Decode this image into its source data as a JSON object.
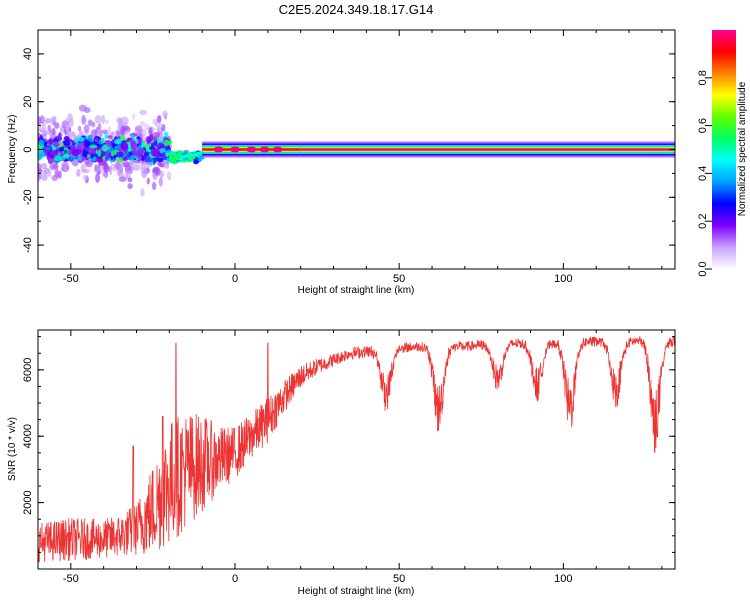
{
  "chart_data": [
    {
      "type": "heatmap",
      "title": "C2E5.2024.349.18.17.G14",
      "xlabel": "Height of straight line (km)",
      "ylabel": "Frequency (Hz)",
      "xlim": [
        -60,
        134
      ],
      "ylim": [
        -50,
        50
      ],
      "xticks": [
        "-50",
        "0",
        "50",
        "100"
      ],
      "yticks": [
        "40",
        "20",
        "0",
        "-20",
        "-40"
      ],
      "colorbar": {
        "label": "Normalized spectral amplitude",
        "range": [
          0,
          1
        ],
        "ticks": [
          "0.0",
          "0.2",
          "0.4",
          "0.6",
          "0.8"
        ],
        "colors": [
          "#ffffff",
          "#c8a0ff",
          "#8000ff",
          "#0000ff",
          "#00a0ff",
          "#00ffff",
          "#00ff60",
          "#60ff00",
          "#ffff00",
          "#ff8000",
          "#ff0000",
          "#ff0090"
        ]
      },
      "segments": [
        {
          "x": [
            -60,
            -20
          ],
          "y_center": 0,
          "y_spread": 8,
          "level": 0.3,
          "pattern": "scattered"
        },
        {
          "x": [
            -20,
            -10
          ],
          "y_center": -3,
          "y_spread": 3,
          "level": 0.45,
          "pattern": "transition"
        },
        {
          "x": [
            -10,
            20
          ],
          "y_center": 0,
          "y_spread": 1.5,
          "level": 0.95,
          "pattern": "blobs"
        },
        {
          "x": [
            20,
            134
          ],
          "y_center": 0,
          "y_spread": 1.5,
          "level": 1.0,
          "pattern": "steady"
        }
      ]
    },
    {
      "type": "line",
      "xlabel": "Height of straight line (km)",
      "ylabel": "SNR (10 * v/v)",
      "xlim": [
        -60,
        134
      ],
      "ylim": [
        0,
        7200
      ],
      "xticks": [
        "-50",
        "0",
        "50",
        "100"
      ],
      "yticks": [
        "6000",
        "4000",
        "2000"
      ],
      "line_color": "#ee3333",
      "envelope": {
        "x": [
          -60,
          -50,
          -40,
          -35,
          -30,
          -25,
          -20,
          -15,
          -10,
          -5,
          0,
          5,
          10,
          15,
          20,
          25,
          30,
          35,
          40,
          45,
          50,
          55,
          60,
          65,
          70,
          75,
          80,
          85,
          90,
          95,
          100,
          105,
          110,
          115,
          120,
          125,
          130,
          134
        ],
        "mean": [
          800,
          900,
          900,
          1000,
          1200,
          1800,
          2600,
          3000,
          3200,
          3300,
          3500,
          4000,
          4500,
          5200,
          5800,
          6100,
          6300,
          6500,
          6550,
          6600,
          6650,
          6700,
          6700,
          6700,
          6700,
          6750,
          6750,
          6800,
          6800,
          6800,
          6850,
          6850,
          6850,
          6850,
          6850,
          6900,
          6900,
          6850
        ],
        "noise": [
          600,
          650,
          600,
          650,
          800,
          1400,
          1900,
          1800,
          1500,
          1000,
          800,
          700,
          700,
          500,
          350,
          250,
          200,
          180,
          180,
          180,
          150,
          150,
          150,
          150,
          150,
          150,
          150,
          150,
          150,
          150,
          150,
          150,
          150,
          150,
          150,
          150,
          150,
          150
        ]
      },
      "dips": [
        {
          "x": 46,
          "min": 4700,
          "width": 3
        },
        {
          "x": 62,
          "min": 4000,
          "width": 3
        },
        {
          "x": 80,
          "min": 5300,
          "width": 3
        },
        {
          "x": 92,
          "min": 5000,
          "width": 3
        },
        {
          "x": 102,
          "min": 4000,
          "width": 3
        },
        {
          "x": 116,
          "min": 4800,
          "width": 3
        },
        {
          "x": 128,
          "min": 3400,
          "width": 3
        }
      ],
      "peaks": [
        {
          "x": -18,
          "value": 6800
        },
        {
          "x": 10,
          "value": 6800
        },
        {
          "x": -31,
          "value": 3700
        },
        {
          "x": -22,
          "value": 4600
        }
      ]
    }
  ]
}
